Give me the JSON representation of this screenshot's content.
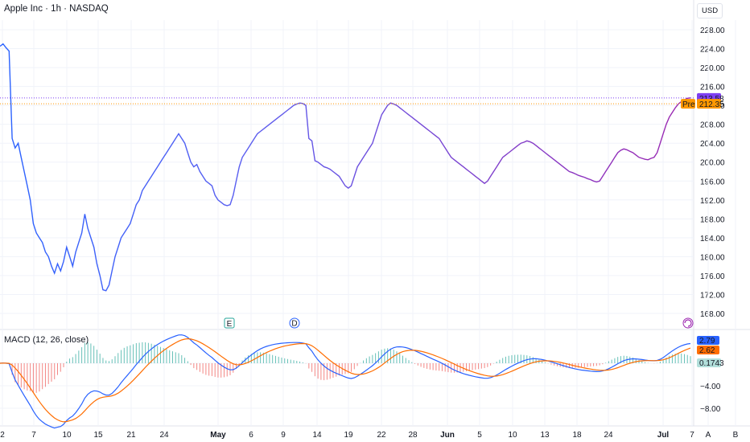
{
  "header": {
    "symbol_title": "Apple Inc · 1h · NASDAQ",
    "currency": "USD"
  },
  "macd": {
    "title": "MACD (12, 26, close)",
    "labels": {
      "macd": "2.79",
      "signal": "2.62",
      "hist": "0.1743"
    },
    "y_ticks": [
      "0.00",
      "−4.00",
      "−8.00"
    ]
  },
  "markers": {
    "earnings": "E",
    "dividend": "D"
  },
  "price_labels": {
    "last": "213.58",
    "pre_tag": "Pre",
    "pre": "212.35"
  },
  "colors": {
    "blue": "#2962ff",
    "purple": "#9c27b0",
    "last_label": "#7e3ff2",
    "pre_label": "#ff9800",
    "macd": "#2962ff",
    "signal": "#ff6d00",
    "hist_pos": "#26a69a",
    "hist_neg": "#ef5350",
    "grid": "#f0f3fa"
  },
  "axes": {
    "y_ticks": [
      "228.00",
      "224.00",
      "220.00",
      "216.00",
      "212.00",
      "208.00",
      "204.00",
      "200.00",
      "196.00",
      "192.00",
      "188.00",
      "184.00",
      "180.00",
      "176.00",
      "172.00",
      "168.00"
    ],
    "x_ticks": [
      "2",
      "7",
      "10",
      "15",
      "21",
      "24",
      "May",
      "6",
      "9",
      "14",
      "19",
      "22",
      "28",
      "Jun",
      "5",
      "10",
      "13",
      "18",
      "24",
      "Jul",
      "7",
      "A",
      "B"
    ]
  },
  "chart_data": {
    "type": "line",
    "title": "Apple Inc · 1h · NASDAQ",
    "ylim": [
      166,
      230
    ],
    "y_ticks": [
      228,
      224,
      220,
      216,
      212,
      208,
      204,
      200,
      196,
      192,
      188,
      184,
      180,
      176,
      172,
      168
    ],
    "series": [
      {
        "values": [
          224.5,
          225,
          224.2,
          223.5,
          205,
          203,
          204,
          201,
          198,
          195,
          192,
          187,
          185,
          184,
          183,
          181,
          180,
          178,
          176.5,
          178.5,
          177,
          179,
          182,
          180,
          178,
          181,
          183,
          185,
          189,
          186,
          184,
          182,
          178.5,
          176,
          173,
          172.8,
          174,
          177,
          180,
          182,
          184,
          185,
          186,
          187,
          189,
          191,
          192,
          194,
          195,
          196,
          197,
          198,
          199,
          200,
          201,
          202,
          203,
          204,
          205,
          206,
          205,
          204,
          202,
          200,
          199,
          199.5,
          198,
          197,
          196,
          195.5,
          195,
          193,
          192,
          191.5,
          191,
          190.8,
          191,
          193,
          196,
          199,
          201,
          202,
          203,
          204,
          205,
          206,
          206.5,
          207,
          207.5,
          208,
          208.5,
          209,
          209.5,
          210,
          210.5,
          211,
          211.5,
          212,
          212.3,
          212.5,
          212.4,
          212,
          205,
          204.5,
          200.3,
          200,
          199.5,
          199,
          198.8,
          198.5,
          198,
          197.5,
          197,
          196,
          195,
          194.5,
          195,
          197,
          199,
          200,
          201,
          202,
          203,
          204,
          206,
          208,
          210,
          211,
          212,
          212.5,
          212.3,
          212,
          211.5,
          211,
          210.5,
          210,
          209.5,
          209,
          208.5,
          208,
          207.5,
          207,
          206.5,
          206,
          205.5,
          205,
          204,
          203,
          202,
          201,
          200.5,
          200,
          199.5,
          199,
          198.5,
          198,
          197.5,
          197,
          196.5,
          196,
          195.5,
          196,
          197,
          198,
          199,
          200,
          201,
          201.5,
          202,
          202.5,
          203,
          203.5,
          204,
          204.2,
          204.5,
          204.3,
          204,
          203.5,
          203,
          202.5,
          202,
          201.5,
          201,
          200.5,
          200,
          199.5,
          199,
          198.5,
          198,
          197.8,
          197.5,
          197.2,
          197,
          196.8,
          196.5,
          196.3,
          196,
          195.8,
          196,
          197,
          198,
          199,
          200,
          201,
          202,
          202.5,
          202.8,
          202.6,
          202.3,
          202,
          201.5,
          201,
          200.8,
          200.6,
          200.5,
          200.8,
          201,
          202,
          204,
          206,
          208,
          209.5,
          210.5,
          211.5,
          212.3,
          212.8,
          213.2,
          213.5,
          213.58
        ]
      }
    ]
  }
}
